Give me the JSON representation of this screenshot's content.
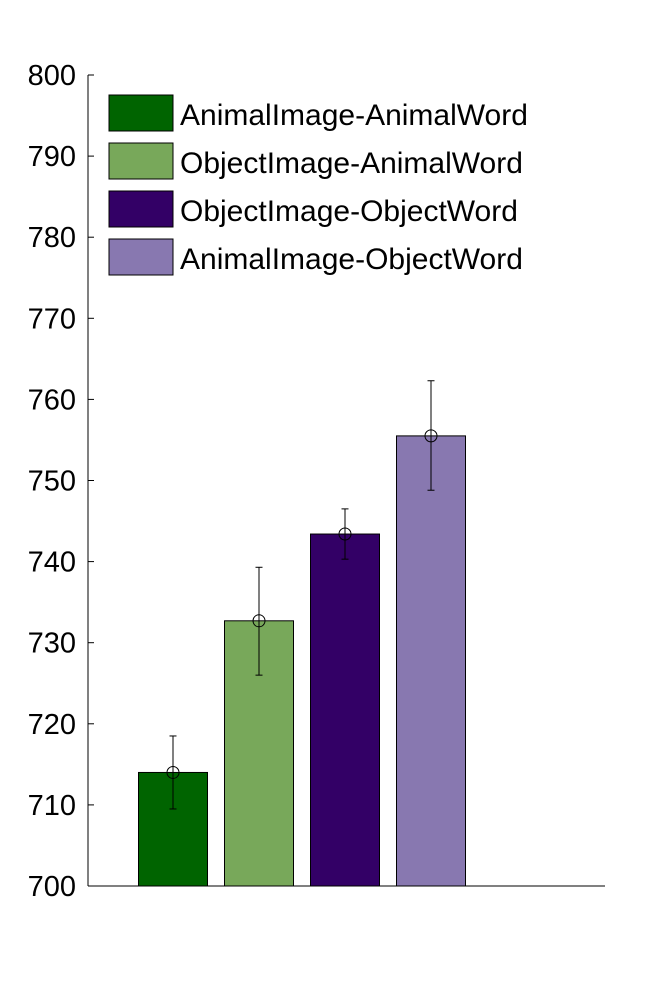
{
  "chart_data": {
    "type": "bar",
    "title": "",
    "xlabel": "",
    "ylabel": "",
    "ylim": [
      700,
      800
    ],
    "yticks": [
      700,
      710,
      720,
      730,
      740,
      750,
      760,
      770,
      780,
      790,
      800
    ],
    "grid": false,
    "legend_position": "top-left",
    "series": [
      {
        "name": "AnimalImage-AnimalWord",
        "value": 714.0,
        "err_low": 709.5,
        "err_high": 718.5,
        "color": "#006400"
      },
      {
        "name": "ObjectImage-AnimalWord",
        "value": 732.7,
        "err_low": 726.0,
        "err_high": 739.3,
        "color": "#78A85A"
      },
      {
        "name": "ObjectImage-ObjectWord",
        "value": 743.4,
        "err_low": 740.3,
        "err_high": 746.5,
        "color": "#330066"
      },
      {
        "name": "AnimalImage-ObjectWord",
        "value": 755.5,
        "err_low": 748.8,
        "err_high": 762.3,
        "color": "#8878B0"
      }
    ]
  }
}
